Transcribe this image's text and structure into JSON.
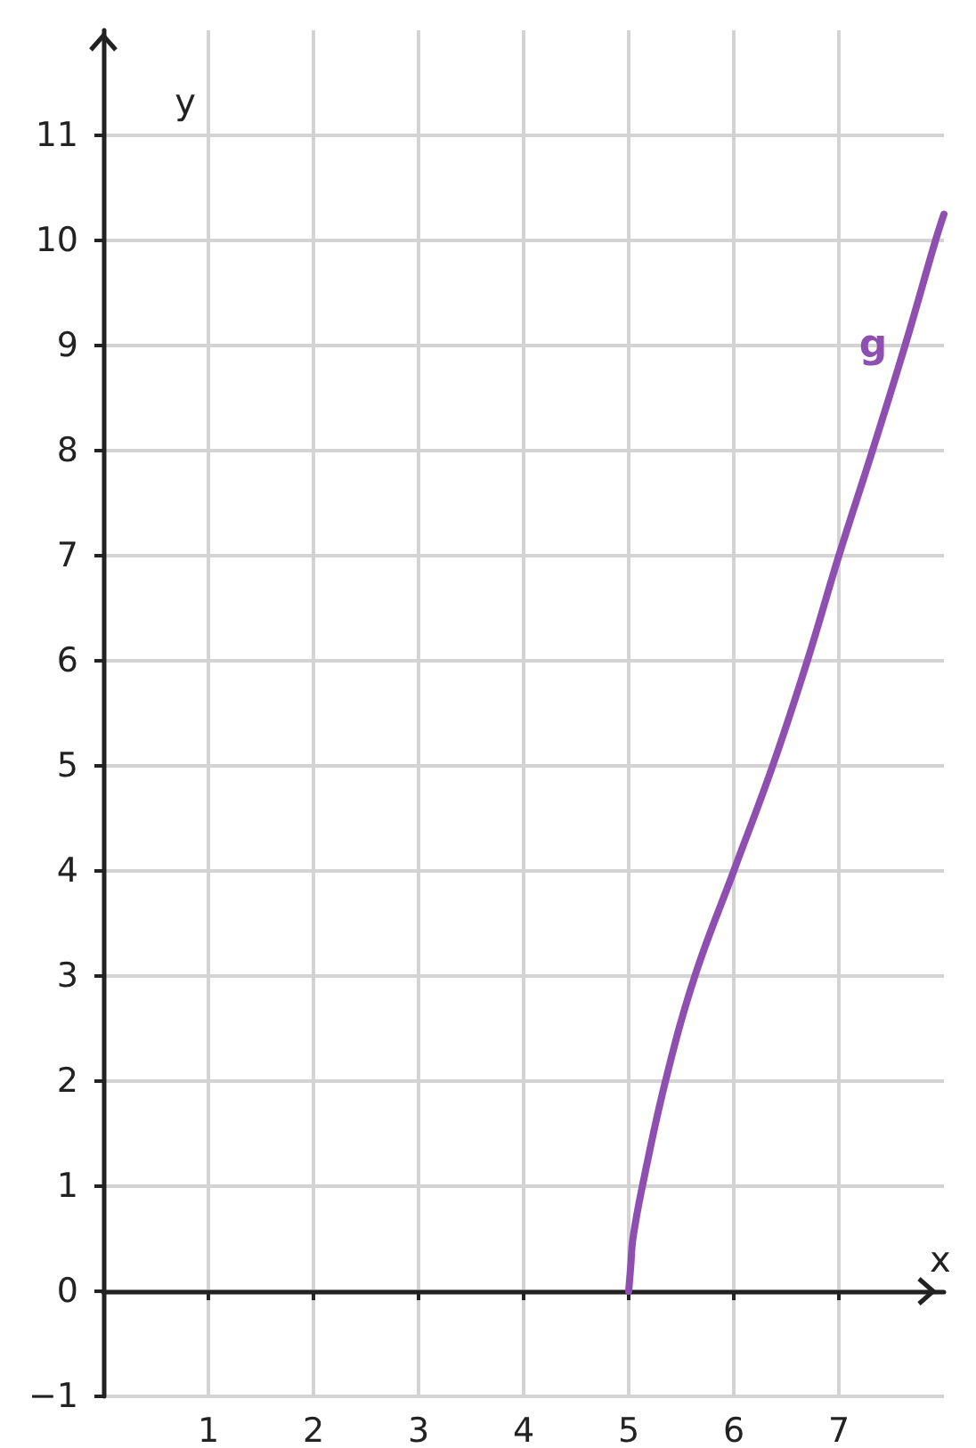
{
  "chart_data": {
    "type": "line",
    "xlabel": "x",
    "ylabel": "y",
    "xlim": [
      0,
      8
    ],
    "xticks": [
      1,
      2,
      3,
      4,
      5,
      6,
      7
    ],
    "ylim": [
      -1,
      12
    ],
    "yticks": [
      {
        "value": -1,
        "label": "−1"
      },
      {
        "value": 0,
        "label": "0"
      },
      1,
      2,
      3,
      4,
      5,
      6,
      7,
      8,
      9,
      10,
      11
    ],
    "grid": true,
    "marker": "none",
    "line_style": "solid",
    "series": [
      {
        "name": "g",
        "color": "#8e4fb0",
        "x": [
          5,
          5.02,
          5.04,
          5.13,
          5.35,
          5.63,
          6,
          6.37,
          6.7,
          7,
          7.32,
          7.63,
          7.92,
          8
        ],
        "values": [
          0,
          0.25,
          0.5,
          1,
          2,
          3,
          4,
          5,
          6,
          7,
          8,
          9,
          10,
          10.25
        ]
      }
    ]
  }
}
